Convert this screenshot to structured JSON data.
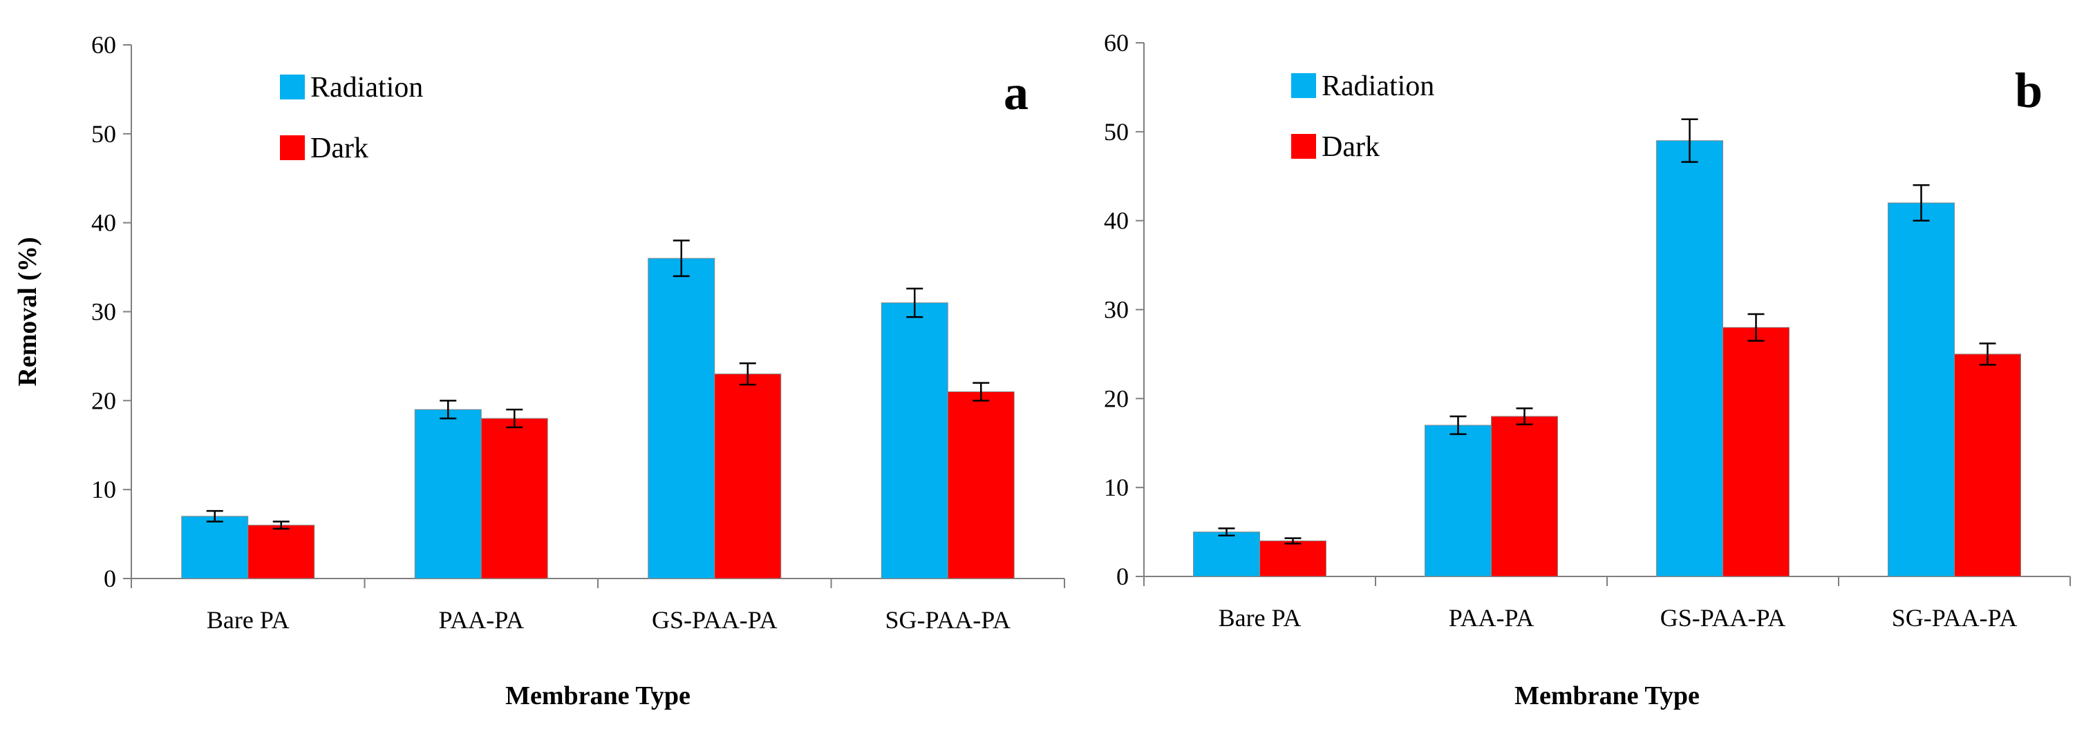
{
  "colors": {
    "radiation": "#00b0f0",
    "dark": "#ff0000",
    "axis": "#7f7f7f",
    "error": "#000000"
  },
  "chart_data": [
    {
      "type": "bar",
      "panel_label": "a",
      "categories": [
        "Bare PA",
        "PAA-PA",
        "GS-PAA-PA",
        "SG-PAA-PA"
      ],
      "series": [
        {
          "name": "Radiation",
          "values": [
            7,
            19,
            36,
            31
          ],
          "errors": [
            0.6,
            1.0,
            2.0,
            1.6
          ]
        },
        {
          "name": "Dark",
          "values": [
            6,
            18,
            23,
            21
          ],
          "errors": [
            0.4,
            1.0,
            1.2,
            1.0
          ]
        }
      ],
      "xlabel": "Membrane Type",
      "ylabel": "Removal (%)",
      "ylim": [
        0,
        60
      ],
      "yticks": [
        0,
        10,
        20,
        30,
        40,
        50,
        60
      ],
      "grid": false,
      "legend": "top-left"
    },
    {
      "type": "bar",
      "panel_label": "b",
      "categories": [
        "Bare PA",
        "PAA-PA",
        "GS-PAA-PA",
        "SG-PAA-PA"
      ],
      "series": [
        {
          "name": "Radiation",
          "values": [
            5,
            17,
            49,
            42
          ],
          "errors": [
            0.4,
            1.0,
            2.4,
            2.0
          ]
        },
        {
          "name": "Dark",
          "values": [
            4,
            18,
            28,
            25
          ],
          "errors": [
            0.3,
            0.9,
            1.5,
            1.2
          ]
        }
      ],
      "xlabel": "Membrane Type",
      "ylabel": "",
      "ylim": [
        0,
        60
      ],
      "yticks": [
        0,
        10,
        20,
        30,
        40,
        50,
        60
      ],
      "grid": false,
      "legend": "top-left"
    }
  ]
}
